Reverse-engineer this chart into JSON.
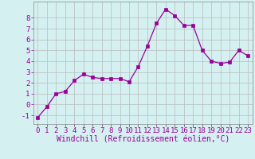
{
  "x": [
    0,
    1,
    2,
    3,
    4,
    5,
    6,
    7,
    8,
    9,
    10,
    11,
    12,
    13,
    14,
    15,
    16,
    17,
    18,
    19,
    20,
    21,
    22,
    23
  ],
  "y": [
    -1.2,
    -0.2,
    1.0,
    1.2,
    2.2,
    2.8,
    2.5,
    2.4,
    2.4,
    2.4,
    2.1,
    3.5,
    5.4,
    7.5,
    8.8,
    8.2,
    7.3,
    7.3,
    5.0,
    4.0,
    3.8,
    3.9,
    5.0,
    4.5
  ],
  "line_color": "#990099",
  "marker": "s",
  "marker_size": 2.5,
  "background_color": "#d4f0f0",
  "grid_color": "#bbbbbb",
  "xlabel": "Windchill (Refroidissement éolien,°C)",
  "xlabel_fontsize": 7,
  "tick_fontsize": 6.5,
  "ylim": [
    -1.8,
    9.5
  ],
  "xlim": [
    -0.5,
    23.5
  ],
  "yticks": [
    -1,
    0,
    1,
    2,
    3,
    4,
    5,
    6,
    7,
    8
  ],
  "xticks": [
    0,
    1,
    2,
    3,
    4,
    5,
    6,
    7,
    8,
    9,
    10,
    11,
    12,
    13,
    14,
    15,
    16,
    17,
    18,
    19,
    20,
    21,
    22,
    23
  ]
}
